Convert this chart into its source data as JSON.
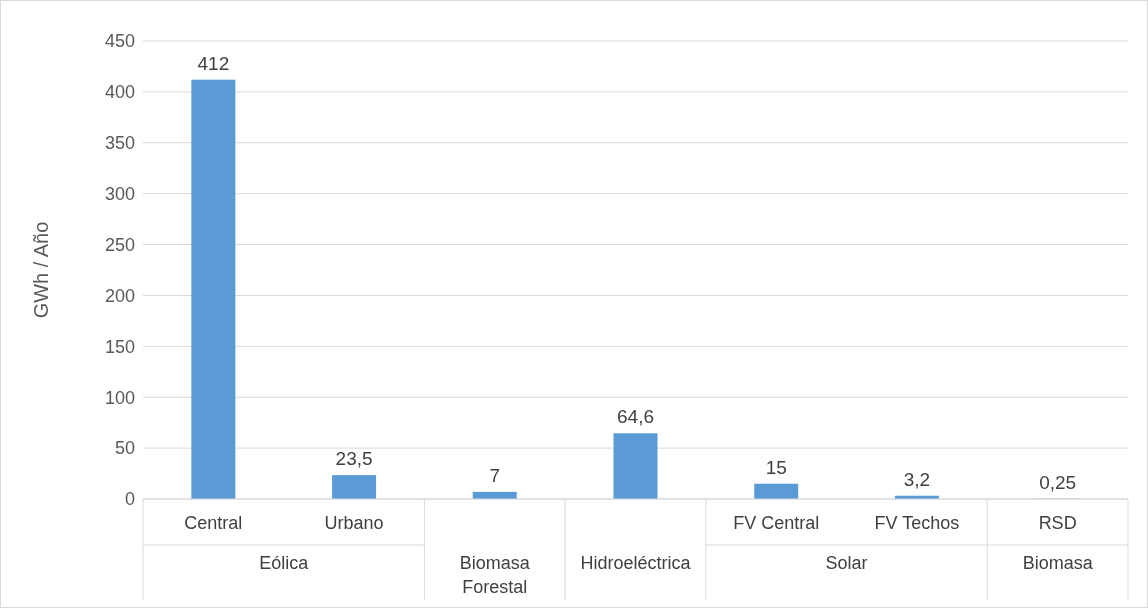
{
  "chart_data": {
    "type": "bar",
    "ylabel": "GWh / Año",
    "categories": [
      "Central",
      "Urbano",
      null,
      null,
      "FV Central",
      "FV Techos",
      "RSD"
    ],
    "values": [
      412,
      23.5,
      7,
      64.6,
      15,
      3.2,
      0.25
    ],
    "value_labels": [
      "412",
      "23,5",
      "7",
      "64,6",
      "15",
      "3,2",
      "0,25"
    ],
    "color": "#5b9bd5",
    "ylim": [
      0,
      450
    ],
    "yticks": [
      0,
      50,
      100,
      150,
      200,
      250,
      300,
      350,
      400,
      450
    ],
    "grid": "y",
    "annotations": [
      "Eólica",
      "Biomasa Forestal",
      "Hidroeléctrica",
      "Solar",
      "Biomasa"
    ]
  }
}
